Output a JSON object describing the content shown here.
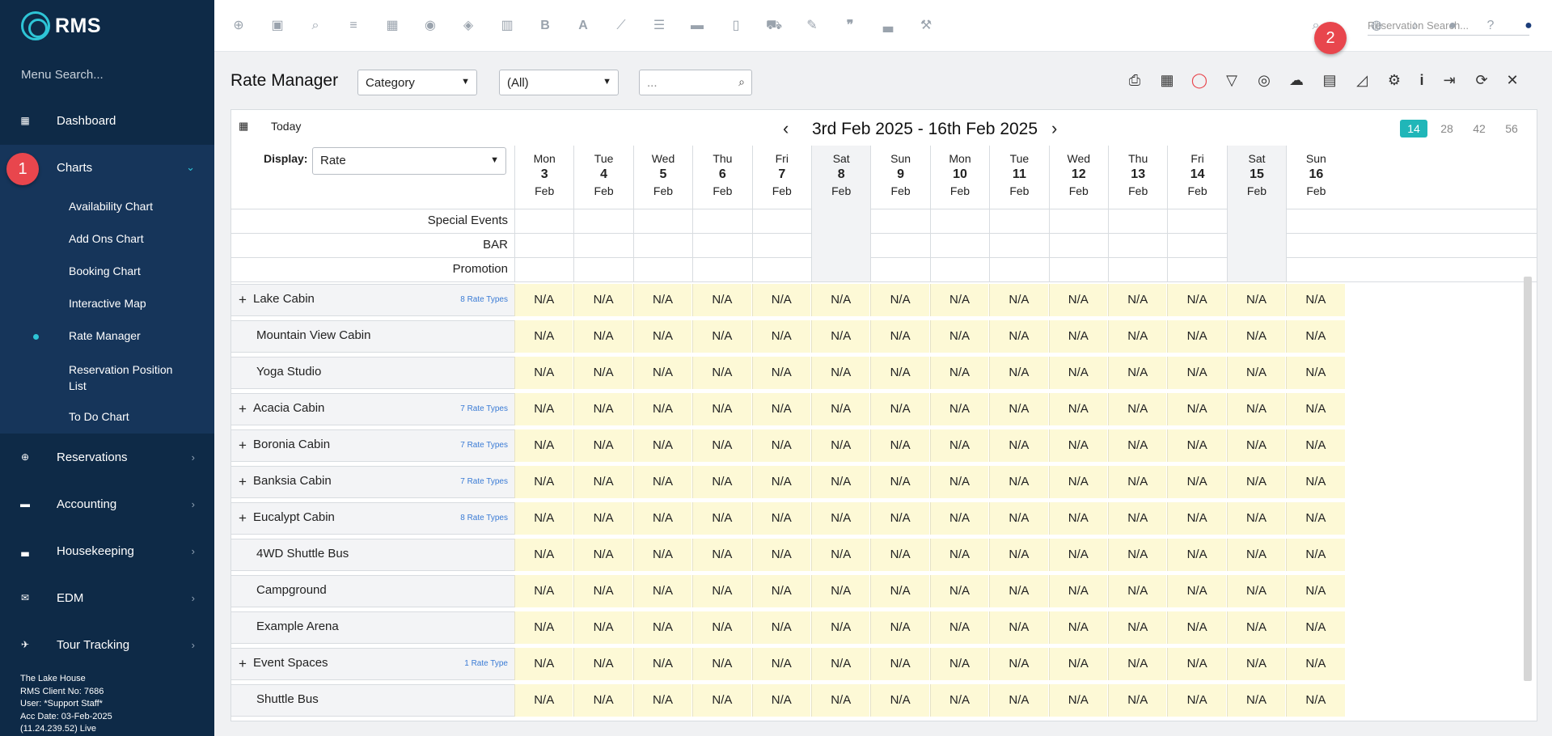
{
  "app": {
    "logo": "RMS"
  },
  "sidebar": {
    "menu_search": "Menu Search...",
    "items": [
      {
        "label": "Dashboard",
        "icon": "grid-icon"
      },
      {
        "label": "Charts",
        "icon": "chart-icon"
      },
      {
        "label": "Reservations",
        "icon": "plus-circle-icon"
      },
      {
        "label": "Accounting",
        "icon": "card-icon"
      },
      {
        "label": "Housekeeping",
        "icon": "bed-icon"
      },
      {
        "label": "EDM",
        "icon": "mail-icon"
      },
      {
        "label": "Tour Tracking",
        "icon": "plane-icon"
      }
    ],
    "charts_sub": [
      "Availability Chart",
      "Add Ons Chart",
      "Booking Chart",
      "Interactive Map",
      "Rate Manager",
      "Reservation Position List",
      "To Do Chart"
    ],
    "footer": [
      "The Lake House",
      "RMS Client No: 7686",
      "User: *Support Staff*",
      "Acc Date: 03-Feb-2025",
      "(11.24.239.52)  Live"
    ]
  },
  "markers": {
    "one": "1",
    "two": "2"
  },
  "topbar": {
    "search_placeholder": "Reservation Search..."
  },
  "header": {
    "title": "Rate Manager",
    "category_select": "Category",
    "all_select": "(All)",
    "search_placeholder": "..."
  },
  "grid": {
    "today": "Today",
    "range": "3rd Feb 2025 - 16th Feb 2025",
    "range_options": [
      "14",
      "28",
      "42",
      "56"
    ],
    "active_range": "14",
    "display_label": "Display:",
    "display_value": "Rate",
    "days": [
      {
        "dow": "Mon",
        "num": "3",
        "mon": "Feb"
      },
      {
        "dow": "Tue",
        "num": "4",
        "mon": "Feb"
      },
      {
        "dow": "Wed",
        "num": "5",
        "mon": "Feb"
      },
      {
        "dow": "Thu",
        "num": "6",
        "mon": "Feb"
      },
      {
        "dow": "Fri",
        "num": "7",
        "mon": "Feb"
      },
      {
        "dow": "Sat",
        "num": "8",
        "mon": "Feb"
      },
      {
        "dow": "Sun",
        "num": "9",
        "mon": "Feb"
      },
      {
        "dow": "Mon",
        "num": "10",
        "mon": "Feb"
      },
      {
        "dow": "Tue",
        "num": "11",
        "mon": "Feb"
      },
      {
        "dow": "Wed",
        "num": "12",
        "mon": "Feb"
      },
      {
        "dow": "Thu",
        "num": "13",
        "mon": "Feb"
      },
      {
        "dow": "Fri",
        "num": "14",
        "mon": "Feb"
      },
      {
        "dow": "Sat",
        "num": "15",
        "mon": "Feb"
      },
      {
        "dow": "Sun",
        "num": "16",
        "mon": "Feb"
      }
    ],
    "info_rows": [
      "Special Events",
      "BAR",
      "Promotion"
    ],
    "na": "N/A",
    "categories": [
      {
        "name": "Lake Cabin",
        "expandable": true,
        "rate_types": "8 Rate Types"
      },
      {
        "name": "Mountain View Cabin",
        "expandable": false,
        "rate_types": ""
      },
      {
        "name": "Yoga Studio",
        "expandable": false,
        "rate_types": ""
      },
      {
        "name": "Acacia Cabin",
        "expandable": true,
        "rate_types": "7 Rate Types"
      },
      {
        "name": "Boronia Cabin",
        "expandable": true,
        "rate_types": "7 Rate Types"
      },
      {
        "name": "Banksia Cabin",
        "expandable": true,
        "rate_types": "7 Rate Types"
      },
      {
        "name": "Eucalypt Cabin",
        "expandable": true,
        "rate_types": "8 Rate Types"
      },
      {
        "name": "4WD Shuttle Bus",
        "expandable": false,
        "rate_types": ""
      },
      {
        "name": "Campground",
        "expandable": false,
        "rate_types": ""
      },
      {
        "name": "Example Arena",
        "expandable": false,
        "rate_types": ""
      },
      {
        "name": "Event Spaces",
        "expandable": true,
        "rate_types": "1 Rate Type"
      },
      {
        "name": "Shuttle Bus",
        "expandable": false,
        "rate_types": ""
      }
    ]
  }
}
